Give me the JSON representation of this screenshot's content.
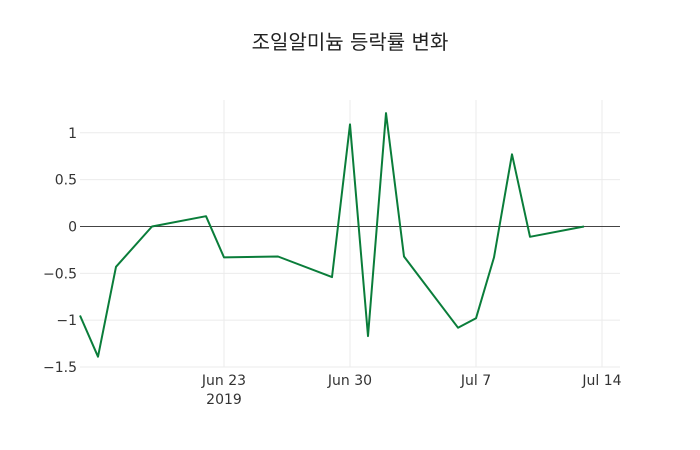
{
  "chart_data": {
    "type": "line",
    "title": "조일알미늄 등락률 변화",
    "xlabel": "",
    "ylabel": "",
    "x_range": [
      "2019-06-15",
      "2019-07-15"
    ],
    "ylim": [
      -1.5,
      1.35
    ],
    "x_ticks": [
      {
        "date": "2019-06-23",
        "label": "Jun 23",
        "sublabel": "2019"
      },
      {
        "date": "2019-06-30",
        "label": "Jun 30",
        "sublabel": ""
      },
      {
        "date": "2019-07-07",
        "label": "Jul 7",
        "sublabel": ""
      },
      {
        "date": "2019-07-14",
        "label": "Jul 14",
        "sublabel": ""
      }
    ],
    "y_ticks": [
      {
        "value": 1,
        "label": "1"
      },
      {
        "value": 0.5,
        "label": "0.5"
      },
      {
        "value": 0,
        "label": "0"
      },
      {
        "value": -0.5,
        "label": "−0.5"
      },
      {
        "value": -1,
        "label": "−1"
      },
      {
        "value": -1.5,
        "label": "−1.5"
      }
    ],
    "grid": true,
    "zero_line": true,
    "series": [
      {
        "color": "#0a7d3a",
        "points": [
          {
            "x": "2019-06-15",
            "y": -0.95
          },
          {
            "x": "2019-06-16",
            "y": -1.39
          },
          {
            "x": "2019-06-17",
            "y": -0.43
          },
          {
            "x": "2019-06-19",
            "y": 0.0
          },
          {
            "x": "2019-06-22",
            "y": 0.11
          },
          {
            "x": "2019-06-23",
            "y": -0.33
          },
          {
            "x": "2019-06-26",
            "y": -0.32
          },
          {
            "x": "2019-06-29",
            "y": -0.54
          },
          {
            "x": "2019-06-30",
            "y": 1.09
          },
          {
            "x": "2019-07-01",
            "y": -1.17
          },
          {
            "x": "2019-07-02",
            "y": 1.21
          },
          {
            "x": "2019-07-03",
            "y": -0.32
          },
          {
            "x": "2019-07-06",
            "y": -1.08
          },
          {
            "x": "2019-07-07",
            "y": -0.98
          },
          {
            "x": "2019-07-08",
            "y": -0.33
          },
          {
            "x": "2019-07-09",
            "y": 0.77
          },
          {
            "x": "2019-07-10",
            "y": -0.11
          },
          {
            "x": "2019-07-13",
            "y": 0.0
          }
        ]
      }
    ]
  }
}
